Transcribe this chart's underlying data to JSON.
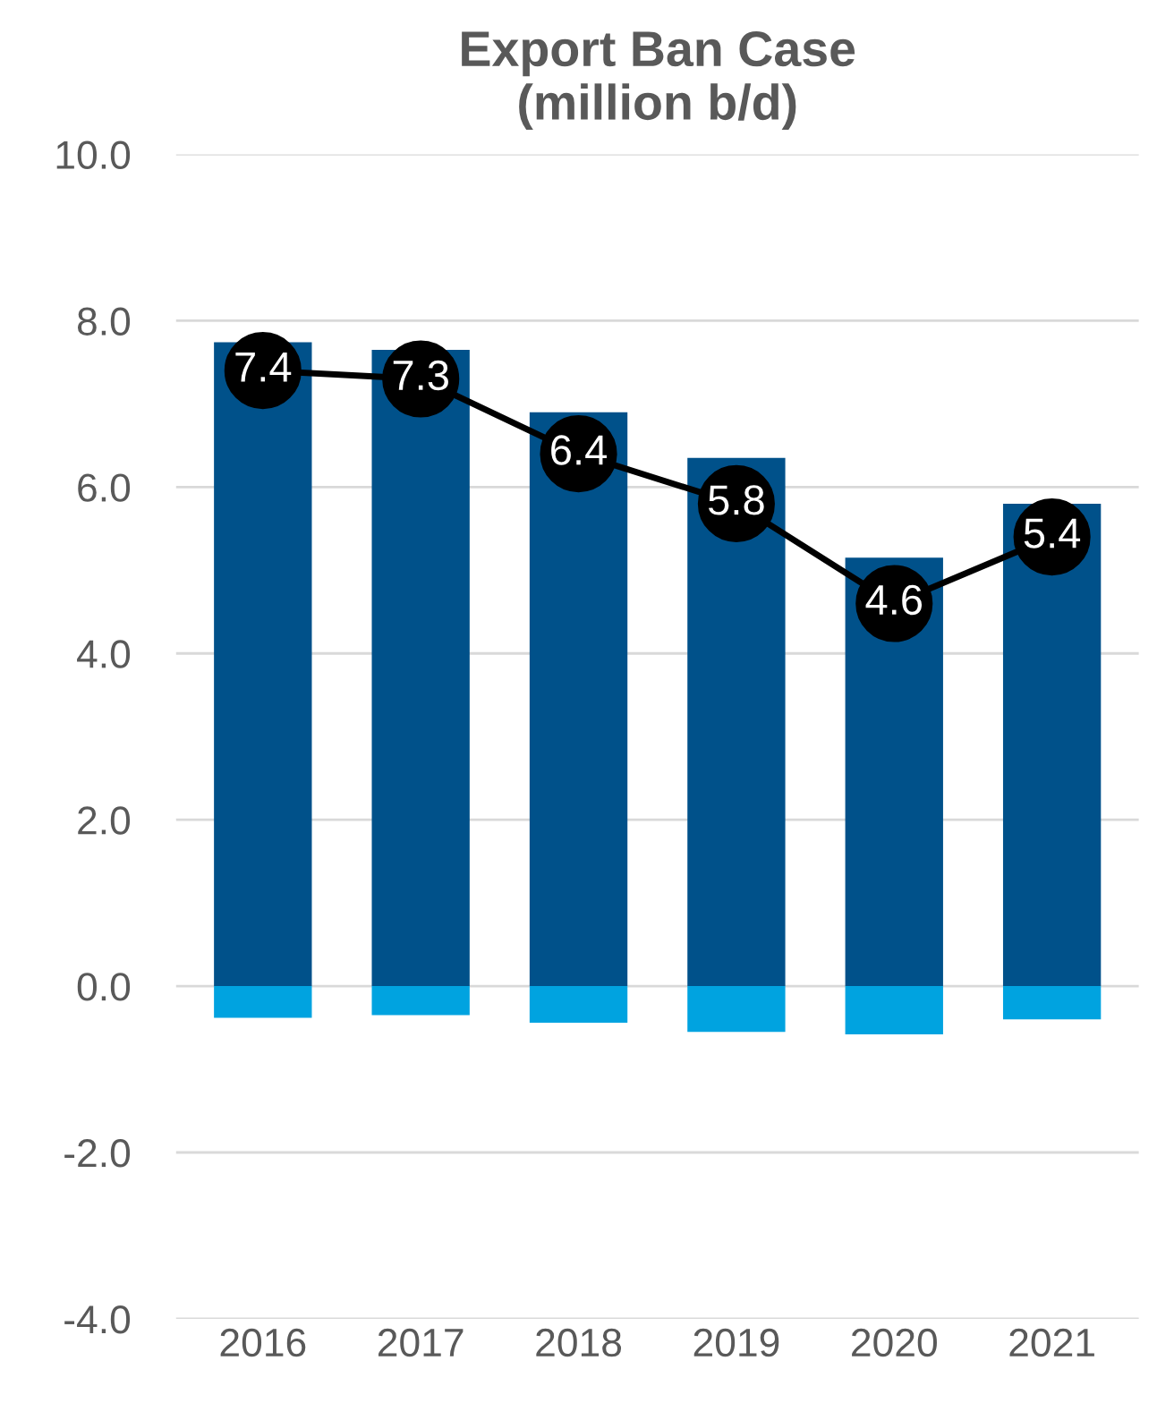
{
  "chart_data": {
    "type": "bar",
    "title": "Export Ban Case\n(million b/d)",
    "categories": [
      "2016",
      "2017",
      "2018",
      "2019",
      "2020",
      "2021"
    ],
    "stacked": true,
    "series": [
      {
        "color": "#00518a",
        "values": [
          7.74,
          7.65,
          6.9,
          6.35,
          5.15,
          5.8
        ]
      },
      {
        "color": "#00a3e0",
        "values": [
          -0.38,
          -0.35,
          -0.44,
          -0.55,
          -0.58,
          -0.4
        ]
      },
      {
        "type": "line",
        "color": "#000000",
        "marker": "circle",
        "values": [
          7.4,
          7.3,
          6.4,
          5.8,
          4.6,
          5.4
        ],
        "value_labels": [
          "7.4",
          "7.3",
          "6.4",
          "5.8",
          "4.6",
          "5.4"
        ]
      }
    ],
    "ylim": [
      -4.0,
      10.0
    ],
    "yticks": [
      {
        "value": -4,
        "label": "-4.0"
      },
      {
        "value": -2,
        "label": "-2.0"
      },
      {
        "value": 0,
        "label": "0.0"
      },
      {
        "value": 2,
        "label": "2.0"
      },
      {
        "value": 4,
        "label": "4.0"
      },
      {
        "value": 6,
        "label": "6.0"
      },
      {
        "value": 8,
        "label": "8.0"
      },
      {
        "value": 10,
        "label": "10.0"
      }
    ],
    "grid": "y",
    "legend": false
  }
}
